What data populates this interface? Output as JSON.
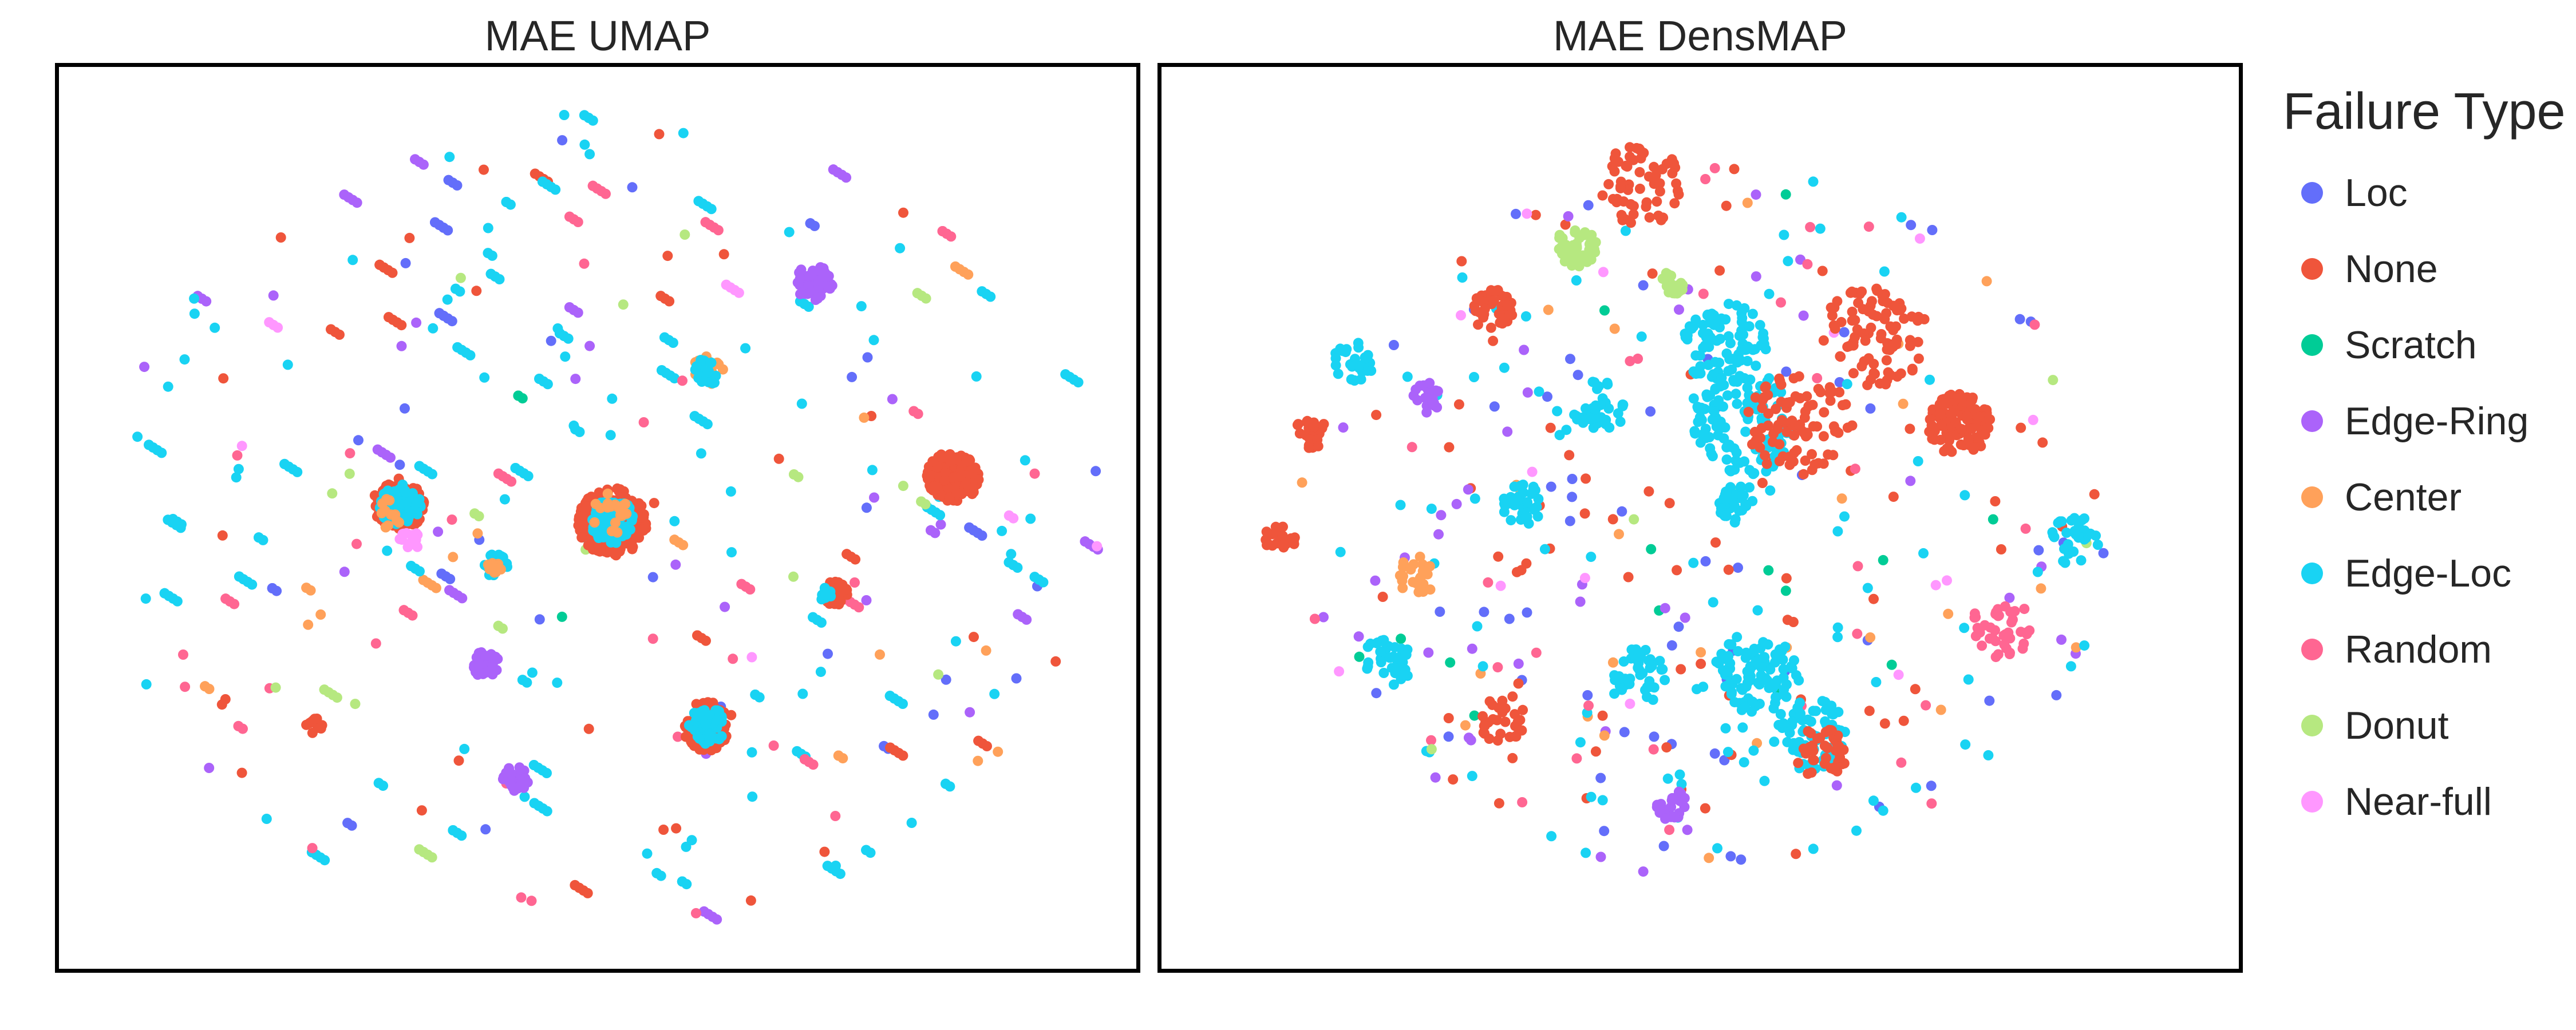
{
  "chart_data": [
    {
      "type": "scatter",
      "title": "MAE UMAP",
      "xlabel": "",
      "ylabel": "",
      "axes_ticks": false,
      "legend_position": "right",
      "clusters": [
        {
          "x": 0.31,
          "y": 0.48,
          "r": 0.025,
          "cls": "None",
          "n": 130
        },
        {
          "x": 0.31,
          "y": 0.48,
          "r": 0.02,
          "cls": "Edge-Loc",
          "n": 90
        },
        {
          "x": 0.3,
          "y": 0.49,
          "r": 0.015,
          "cls": "Center",
          "n": 12
        },
        {
          "x": 0.32,
          "y": 0.52,
          "r": 0.01,
          "cls": "Near-full",
          "n": 14
        },
        {
          "x": 0.51,
          "y": 0.5,
          "r": 0.033,
          "cls": "None",
          "n": 230
        },
        {
          "x": 0.51,
          "y": 0.5,
          "r": 0.022,
          "cls": "Edge-Loc",
          "n": 95
        },
        {
          "x": 0.51,
          "y": 0.49,
          "r": 0.02,
          "cls": "Center",
          "n": 18
        },
        {
          "x": 0.83,
          "y": 0.45,
          "r": 0.025,
          "cls": "None",
          "n": 170
        },
        {
          "x": 0.6,
          "y": 0.73,
          "r": 0.025,
          "cls": "None",
          "n": 80
        },
        {
          "x": 0.6,
          "y": 0.73,
          "r": 0.018,
          "cls": "Edge-Loc",
          "n": 50
        },
        {
          "x": 0.6,
          "y": 0.33,
          "r": 0.015,
          "cls": "Center",
          "n": 20
        },
        {
          "x": 0.6,
          "y": 0.33,
          "r": 0.013,
          "cls": "Edge-Loc",
          "n": 25
        },
        {
          "x": 0.7,
          "y": 0.23,
          "r": 0.018,
          "cls": "Edge-Ring",
          "n": 55
        },
        {
          "x": 0.39,
          "y": 0.66,
          "r": 0.013,
          "cls": "Edge-Ring",
          "n": 35
        },
        {
          "x": 0.42,
          "y": 0.79,
          "r": 0.013,
          "cls": "Edge-Ring",
          "n": 35
        },
        {
          "x": 0.72,
          "y": 0.58,
          "r": 0.012,
          "cls": "None",
          "n": 35
        },
        {
          "x": 0.71,
          "y": 0.58,
          "r": 0.007,
          "cls": "Edge-Loc",
          "n": 10
        },
        {
          "x": 0.4,
          "y": 0.55,
          "r": 0.012,
          "cls": "Edge-Loc",
          "n": 20
        },
        {
          "x": 0.4,
          "y": 0.55,
          "r": 0.009,
          "cls": "Center",
          "n": 10
        },
        {
          "x": 0.23,
          "y": 0.73,
          "r": 0.008,
          "cls": "None",
          "n": 12
        }
      ],
      "scatter_points_per_class": {
        "Loc": 30,
        "None": 35,
        "Scratch": 2,
        "Edge-Ring": 30,
        "Center": 15,
        "Edge-Loc": 110,
        "Random": 35,
        "Donut": 18,
        "Near-full": 6
      }
    },
    {
      "type": "scatter",
      "title": "MAE DensMAP",
      "xlabel": "",
      "ylabel": "",
      "axes_ticks": false,
      "legend_position": "right",
      "clusters": [
        {
          "x": 0.74,
          "y": 0.39,
          "r": 0.03,
          "cls": "None",
          "n": 120
        },
        {
          "x": 0.54,
          "y": 0.39,
          "r": 0.05,
          "cls": "Edge-Loc",
          "n": 110
        },
        {
          "x": 0.59,
          "y": 0.39,
          "r": 0.05,
          "cls": "None",
          "n": 90
        },
        {
          "x": 0.52,
          "y": 0.3,
          "r": 0.04,
          "cls": "Edge-Loc",
          "n": 90
        },
        {
          "x": 0.38,
          "y": 0.19,
          "r": 0.02,
          "cls": "Donut",
          "n": 45
        },
        {
          "x": 0.47,
          "y": 0.23,
          "r": 0.012,
          "cls": "Donut",
          "n": 20
        },
        {
          "x": 0.66,
          "y": 0.29,
          "r": 0.05,
          "cls": "None",
          "n": 90
        },
        {
          "x": 0.3,
          "y": 0.26,
          "r": 0.02,
          "cls": "None",
          "n": 40
        },
        {
          "x": 0.33,
          "y": 0.48,
          "r": 0.02,
          "cls": "Edge-Loc",
          "n": 40
        },
        {
          "x": 0.53,
          "y": 0.48,
          "r": 0.018,
          "cls": "Edge-Loc",
          "n": 40
        },
        {
          "x": 0.55,
          "y": 0.67,
          "r": 0.04,
          "cls": "Edge-Loc",
          "n": 90
        },
        {
          "x": 0.6,
          "y": 0.74,
          "r": 0.035,
          "cls": "Edge-Loc",
          "n": 70
        },
        {
          "x": 0.61,
          "y": 0.76,
          "r": 0.025,
          "cls": "None",
          "n": 40
        },
        {
          "x": 0.44,
          "y": 0.12,
          "r": 0.04,
          "cls": "None",
          "n": 60
        },
        {
          "x": 0.4,
          "y": 0.37,
          "r": 0.025,
          "cls": "Edge-Loc",
          "n": 40
        },
        {
          "x": 0.44,
          "y": 0.67,
          "r": 0.025,
          "cls": "Edge-Loc",
          "n": 40
        },
        {
          "x": 0.2,
          "y": 0.66,
          "r": 0.025,
          "cls": "Edge-Loc",
          "n": 40
        },
        {
          "x": 0.31,
          "y": 0.72,
          "r": 0.025,
          "cls": "None",
          "n": 30
        },
        {
          "x": 0.23,
          "y": 0.56,
          "r": 0.02,
          "cls": "Center",
          "n": 25
        },
        {
          "x": 0.17,
          "y": 0.32,
          "r": 0.02,
          "cls": "Edge-Loc",
          "n": 30
        },
        {
          "x": 0.13,
          "y": 0.4,
          "r": 0.015,
          "cls": "None",
          "n": 25
        },
        {
          "x": 0.85,
          "y": 0.52,
          "r": 0.025,
          "cls": "Edge-Loc",
          "n": 30
        },
        {
          "x": 0.78,
          "y": 0.62,
          "r": 0.03,
          "cls": "Random",
          "n": 40
        },
        {
          "x": 0.47,
          "y": 0.82,
          "r": 0.015,
          "cls": "Edge-Ring",
          "n": 25
        },
        {
          "x": 0.24,
          "y": 0.36,
          "r": 0.015,
          "cls": "Edge-Ring",
          "n": 20
        },
        {
          "x": 0.1,
          "y": 0.52,
          "r": 0.015,
          "cls": "None",
          "n": 20
        }
      ],
      "scatter_points_per_class": {
        "Loc": 60,
        "None": 70,
        "Scratch": 15,
        "Edge-Ring": 40,
        "Center": 25,
        "Edge-Loc": 90,
        "Random": 30,
        "Donut": 5,
        "Near-full": 15
      }
    }
  ],
  "legend": {
    "title": "Failure Type",
    "items": [
      {
        "label": "Loc",
        "color": "#636efa"
      },
      {
        "label": "None",
        "color": "#ef553b"
      },
      {
        "label": "Scratch",
        "color": "#00cc96"
      },
      {
        "label": "Edge-Ring",
        "color": "#ab63fa"
      },
      {
        "label": "Center",
        "color": "#ffa15a"
      },
      {
        "label": "Edge-Loc",
        "color": "#19d3f3"
      },
      {
        "label": "Random",
        "color": "#ff6692"
      },
      {
        "label": "Donut",
        "color": "#b6e880"
      },
      {
        "label": "Near-full",
        "color": "#ff97ff"
      }
    ]
  }
}
